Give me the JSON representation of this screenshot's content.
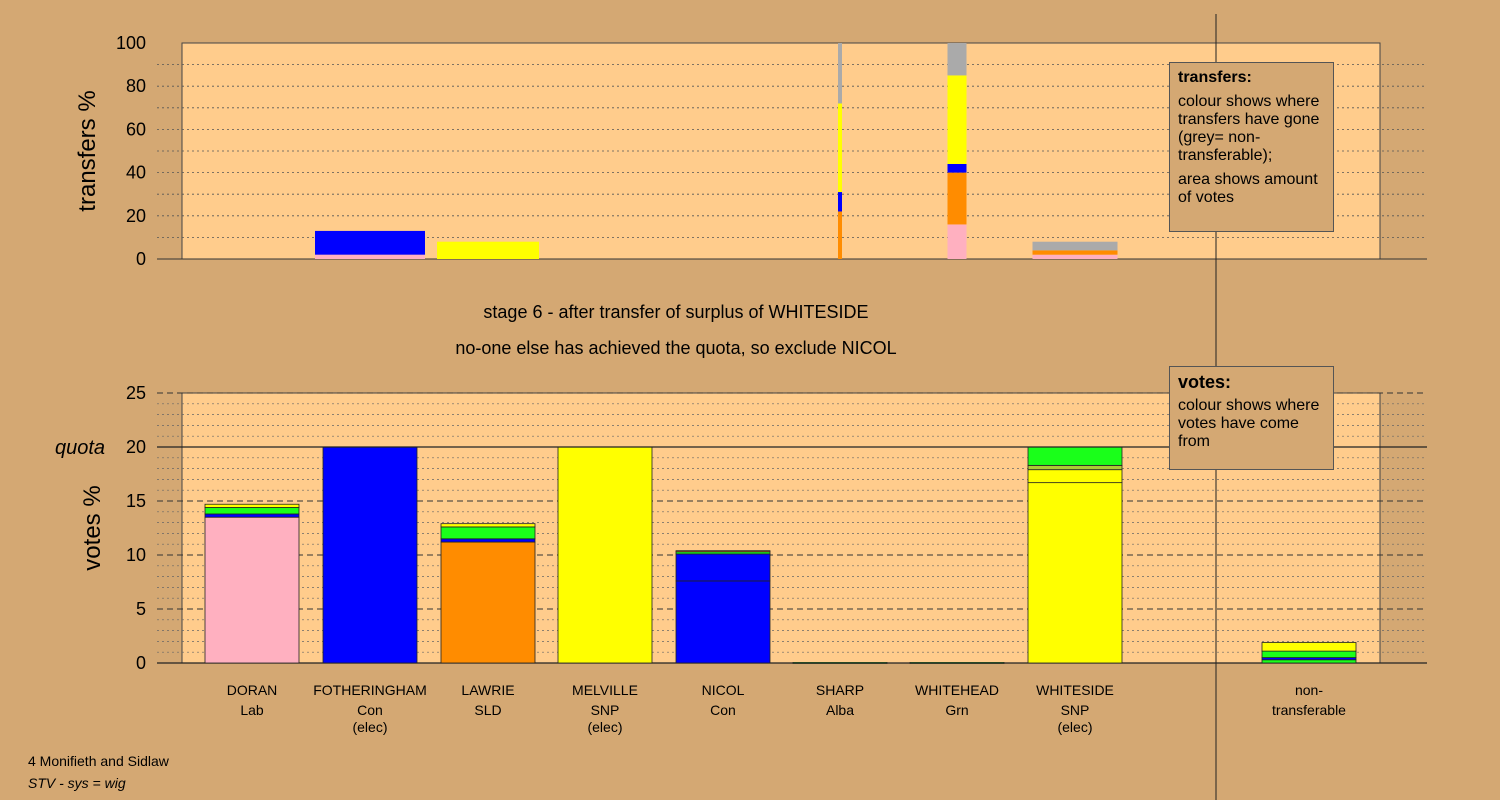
{
  "chart_data": [
    {
      "type": "bar",
      "ylabel": "transfers %",
      "ylim": [
        0,
        100
      ],
      "yticks": [
        "0",
        "20",
        "40",
        "60",
        "80",
        "100"
      ],
      "legend": {
        "title": "transfers:",
        "lines": [
          "colour shows where transfers have gone (grey= non-transferable);",
          "area shows amount of votes"
        ],
        "placement": "top-right"
      },
      "categories": [
        "DORAN",
        "FOTHERINGHAM",
        "LAWRIE",
        "MELVILLE",
        "NICOL",
        "SHARP",
        "WHITEHEAD",
        "WHITESIDE",
        "non-transferable"
      ],
      "series": [
        {
          "name": "Lab",
          "color": "#FFB0C0",
          "values": [
            0,
            2,
            0,
            0,
            0,
            0,
            16,
            2,
            0
          ]
        },
        {
          "name": "SLD",
          "color": "#FF8C00",
          "values": [
            0,
            0,
            0,
            0,
            0,
            22,
            24,
            2,
            0
          ]
        },
        {
          "name": "Con",
          "color": "#0000FF",
          "values": [
            0,
            11,
            0,
            0,
            0,
            9,
            4,
            0,
            0
          ]
        },
        {
          "name": "SNP",
          "color": "#FFFF00",
          "values": [
            0,
            0,
            8,
            0,
            0,
            41,
            41,
            0,
            0
          ]
        },
        {
          "name": "non-transferable",
          "color": "#AAAAAA",
          "values": [
            0,
            0,
            0,
            0,
            0,
            28,
            15,
            4,
            0
          ]
        }
      ]
    },
    {
      "type": "bar",
      "ylabel": "votes %",
      "ylim": [
        0,
        25
      ],
      "yticks": [
        "0",
        "5",
        "10",
        "15",
        "20",
        "25"
      ],
      "quota": {
        "label": "quota",
        "value": 20
      },
      "legend": {
        "title": "votes:",
        "lines": [
          "colour shows where votes have come from"
        ],
        "placement": "top-right"
      },
      "categories": [
        "DORAN",
        "FOTHERINGHAM",
        "LAWRIE",
        "MELVILLE",
        "NICOL",
        "SHARP",
        "WHITEHEAD",
        "WHITESIDE",
        "non-transferable"
      ],
      "stacks": [
        [
          {
            "v": 13.5,
            "c": "#FFB0C0"
          },
          {
            "v": 0.3,
            "c": "#0000FF"
          },
          {
            "v": 0.6,
            "c": "#1AFF1A"
          },
          {
            "v": 0.3,
            "c": "#FFFF00"
          }
        ],
        [
          {
            "v": 20,
            "c": "#0000FF"
          }
        ],
        [
          {
            "v": 11.2,
            "c": "#FF8C00"
          },
          {
            "v": 0.3,
            "c": "#0000FF"
          },
          {
            "v": 1.1,
            "c": "#1AFF1A"
          },
          {
            "v": 0.3,
            "c": "#FFFF00"
          }
        ],
        [
          {
            "v": 20,
            "c": "#FFFF00"
          }
        ],
        [
          {
            "v": 7.6,
            "c": "#0000FF"
          },
          {
            "v": 2.5,
            "c": "#0000FF"
          },
          {
            "v": 0.2,
            "c": "#1AFF1A"
          },
          {
            "v": 0.1,
            "c": "#FF8C00"
          }
        ],
        [
          {
            "v": 0.05,
            "c": "#1AFF1A"
          }
        ],
        [
          {
            "v": 0.05,
            "c": "#1AFF1A"
          }
        ],
        [
          {
            "v": 16.7,
            "c": "#FFFF00"
          },
          {
            "v": 1.2,
            "c": "#FFFF00"
          },
          {
            "v": 0.4,
            "c": "#AACC33"
          },
          {
            "v": 1.7,
            "c": "#1AFF1A"
          }
        ],
        [
          {
            "v": 0.3,
            "c": "#1AFF1A"
          },
          {
            "v": 0.2,
            "c": "#0000FF"
          },
          {
            "v": 0.6,
            "c": "#1AFF1A"
          },
          {
            "v": 0.8,
            "c": "#FFFF00"
          }
        ]
      ]
    }
  ],
  "candidates": [
    {
      "name": "DORAN",
      "party": "Lab",
      "status": ""
    },
    {
      "name": "FOTHERINGHAM",
      "party": "Con",
      "status": "(elec)"
    },
    {
      "name": "LAWRIE",
      "party": "SLD",
      "status": ""
    },
    {
      "name": "MELVILLE",
      "party": "SNP",
      "status": "(elec)"
    },
    {
      "name": "NICOL",
      "party": "Con",
      "status": ""
    },
    {
      "name": "SHARP",
      "party": "Alba",
      "status": ""
    },
    {
      "name": "WHITEHEAD",
      "party": "Grn",
      "status": ""
    },
    {
      "name": "WHITESIDE",
      "party": "SNP",
      "status": "(elec)"
    },
    {
      "name": "non-",
      "party": "transferable",
      "status": ""
    }
  ],
  "messages": {
    "stage": "stage 6 - after transfer of surplus of WHITESIDE",
    "action": "no-one else has achieved the quota, so exclude NICOL"
  },
  "footer": {
    "ward": "4 Monifieth and Sidlaw",
    "system": "STV - sys = wig"
  }
}
